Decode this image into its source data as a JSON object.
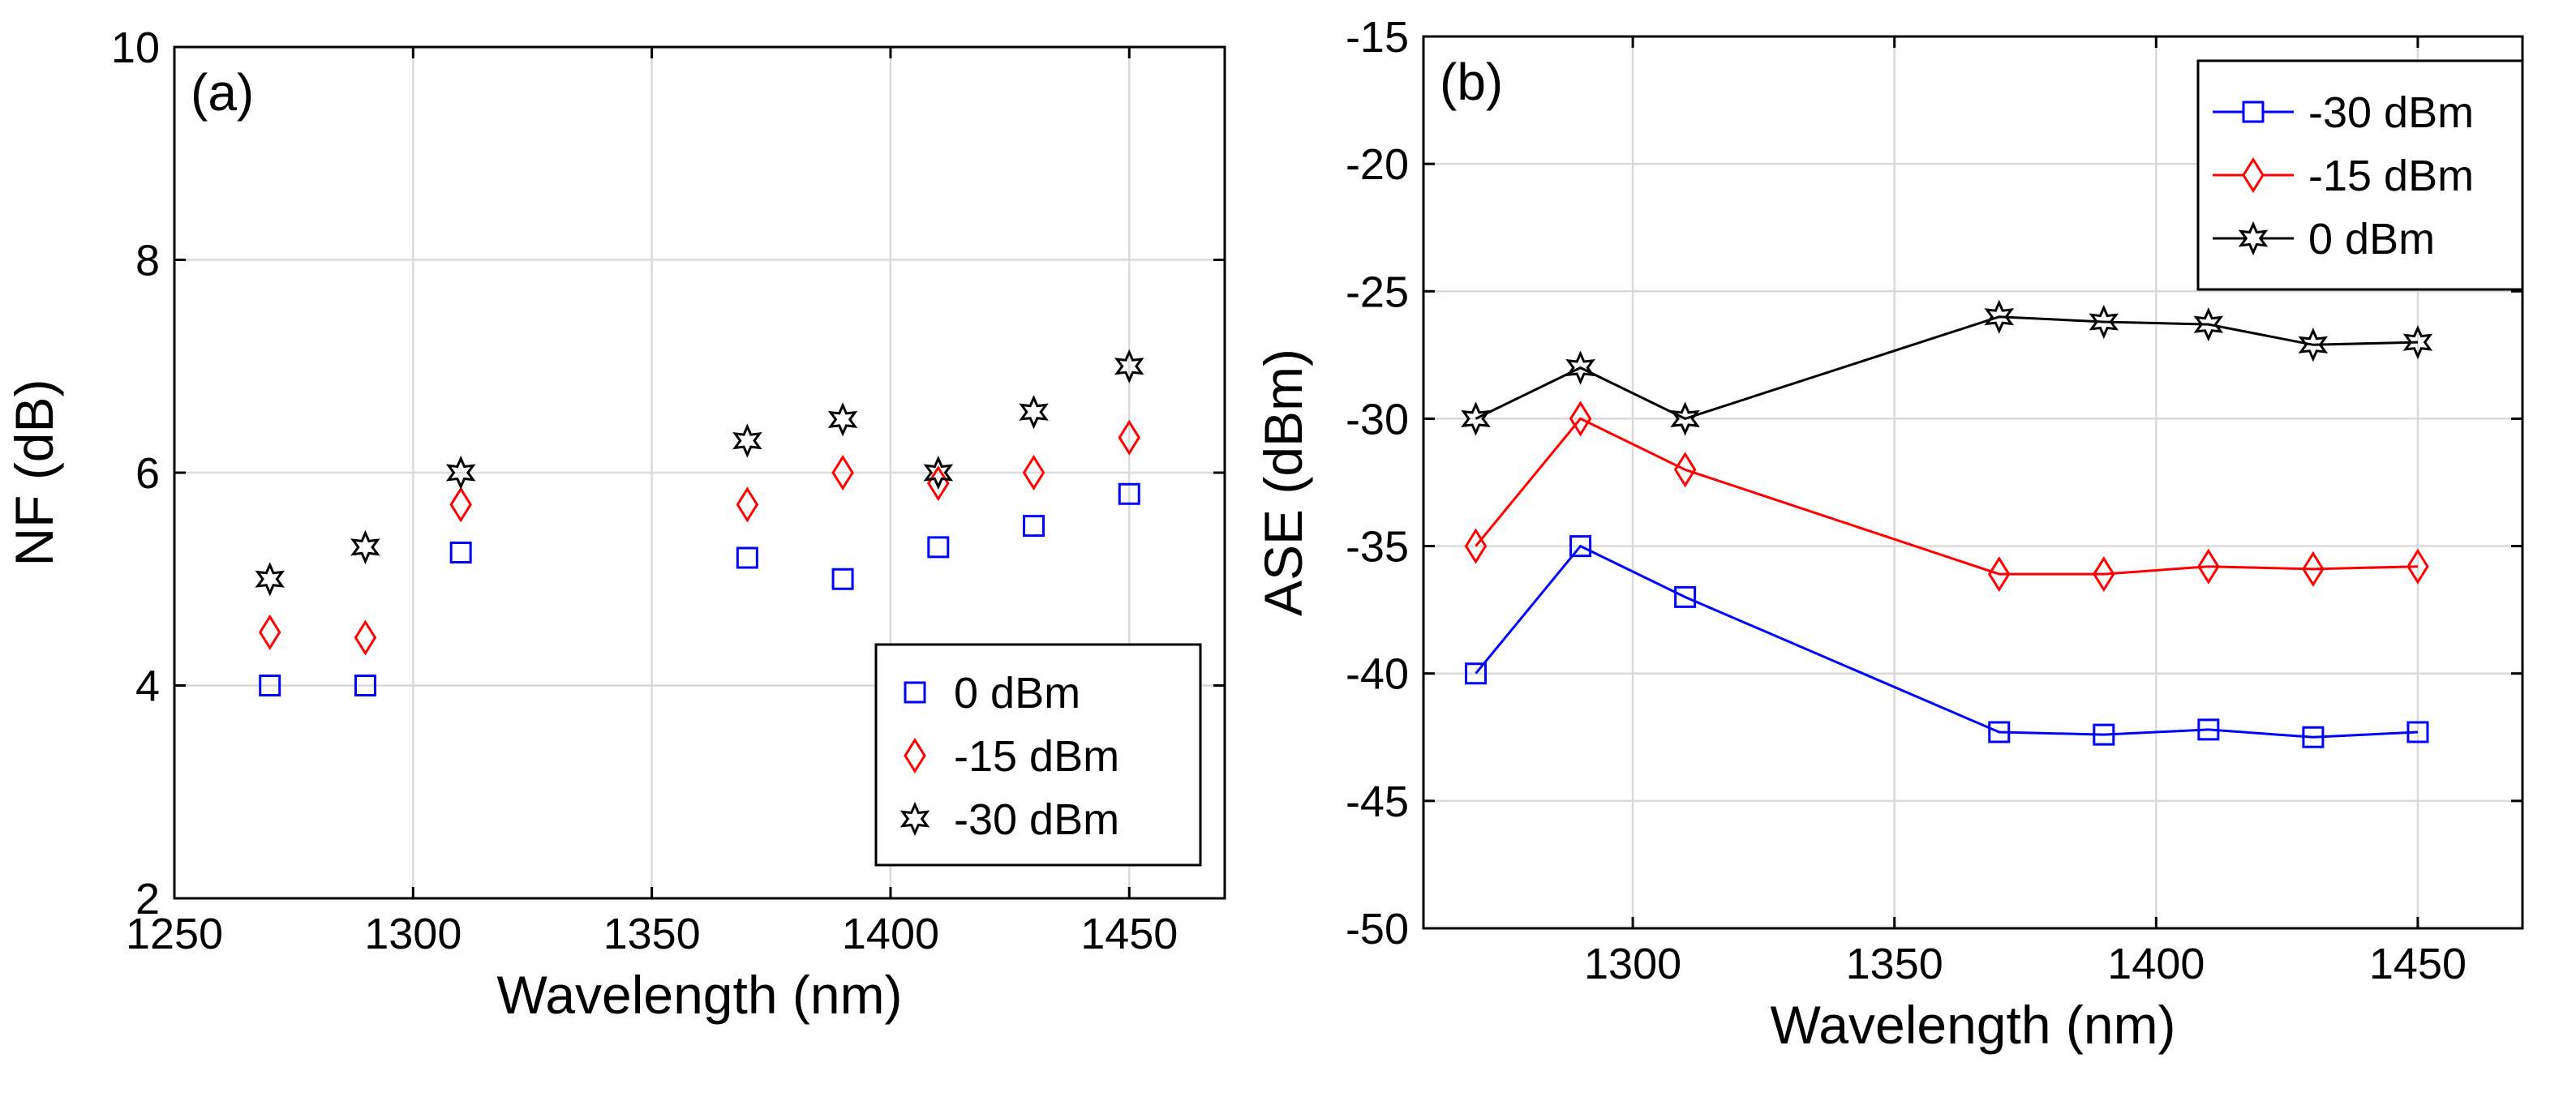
{
  "chart_data": [
    {
      "panel_label": "(a)",
      "type": "scatter",
      "xlabel": "Wavelength (nm)",
      "ylabel": "NF (dB)",
      "xlim": [
        1250,
        1470
      ],
      "ylim": [
        2,
        10
      ],
      "x_ticks": [
        1250,
        1300,
        1350,
        1400,
        1450
      ],
      "y_ticks": [
        2,
        4,
        6,
        8,
        10
      ],
      "grid": true,
      "legend_placement": "bottom-right",
      "x": [
        1270,
        1290,
        1310,
        1370,
        1390,
        1410,
        1430,
        1450
      ],
      "series": [
        {
          "name": "0 dBm",
          "marker": "square",
          "color": "#0000ff",
          "lines": false,
          "values": [
            4.0,
            4.0,
            5.25,
            5.2,
            5.0,
            5.3,
            5.5,
            5.8
          ]
        },
        {
          "name": "-15 dBm",
          "marker": "diamond",
          "color": "#ff0000",
          "lines": false,
          "values": [
            4.5,
            4.45,
            5.7,
            5.7,
            6.0,
            5.9,
            6.0,
            6.33
          ]
        },
        {
          "name": "-30 dBm",
          "marker": "hexagram",
          "color": "#000000",
          "lines": false,
          "values": [
            5.0,
            5.3,
            6.0,
            6.3,
            6.5,
            6.0,
            6.57,
            7.0
          ]
        }
      ]
    },
    {
      "panel_label": "(b)",
      "type": "line",
      "xlabel": "Wavelength (nm)",
      "ylabel": "ASE (dBm)",
      "xlim": [
        1260,
        1470
      ],
      "ylim": [
        -50,
        -15
      ],
      "x_ticks": [
        1300,
        1350,
        1400,
        1450
      ],
      "y_ticks": [
        -50,
        -45,
        -40,
        -35,
        -30,
        -25,
        -20,
        -15
      ],
      "grid": true,
      "legend_placement": "top-right",
      "x": [
        1270,
        1290,
        1310,
        1370,
        1390,
        1410,
        1430,
        1450
      ],
      "series": [
        {
          "name": "-30 dBm",
          "marker": "square",
          "color": "#0000ff",
          "lines": true,
          "values": [
            -40.0,
            -35.0,
            -37.0,
            -42.3,
            -42.4,
            -42.2,
            -42.5,
            -42.3
          ]
        },
        {
          "name": "-15 dBm",
          "marker": "diamond",
          "color": "#ff0000",
          "lines": true,
          "values": [
            -35.0,
            -30.0,
            -32.0,
            -36.1,
            -36.1,
            -35.8,
            -35.9,
            -35.8
          ]
        },
        {
          "name": "0 dBm",
          "marker": "hexagram",
          "color": "#000000",
          "lines": true,
          "values": [
            -30.0,
            -28.0,
            -30.0,
            -26.0,
            -26.2,
            -26.3,
            -27.1,
            -27.0
          ]
        }
      ]
    }
  ]
}
